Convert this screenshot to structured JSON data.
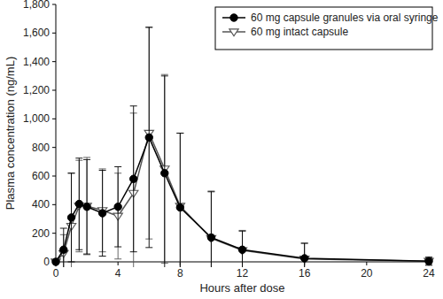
{
  "chart_data": {
    "type": "line",
    "x_label": "Hours after dose",
    "y_label": "Plasma concentration (ng/mL)",
    "x": [
      0,
      0.5,
      1,
      1.5,
      2,
      3,
      4,
      5,
      6,
      7,
      8,
      10,
      12,
      16,
      24
    ],
    "series": [
      {
        "name": "60 mg capsule granules via oral syringe",
        "color": "#000000",
        "marker": "circle",
        "line_style": "solid",
        "values": [
          0,
          85,
          310,
          405,
          385,
          340,
          385,
          580,
          870,
          620,
          380,
          170,
          85,
          25,
          5
        ],
        "errors": [
          0,
          150,
          310,
          320,
          330,
          300,
          280,
          510,
          770,
          680,
          520,
          320,
          130,
          105,
          25
        ]
      },
      {
        "name": "60 mg intact capsule",
        "color": "#555555",
        "marker": "triangle-down",
        "line_style": "solid",
        "values": [
          0,
          60,
          250,
          390,
          390,
          360,
          320,
          480,
          900,
          650,
          390,
          165,
          80,
          20,
          5
        ],
        "errors": [
          0,
          130,
          370,
          320,
          340,
          290,
          300,
          560,
          740,
          660,
          510,
          330,
          140,
          110,
          30
        ]
      }
    ],
    "xlim": [
      0,
      24
    ],
    "ylim": [
      0,
      1800
    ],
    "xticks": [
      0,
      4,
      8,
      12,
      16,
      20,
      24
    ],
    "yticks": [
      0,
      200,
      400,
      600,
      800,
      {
        "value": 1000,
        "label": "1,000"
      },
      {
        "value": 1200,
        "label": "1,200"
      },
      {
        "value": 1400,
        "label": "1,400"
      },
      {
        "value": 1600,
        "label": "1,600"
      },
      {
        "value": 1800,
        "label": "1,800"
      }
    ],
    "legend": "top-right",
    "grid": false
  }
}
